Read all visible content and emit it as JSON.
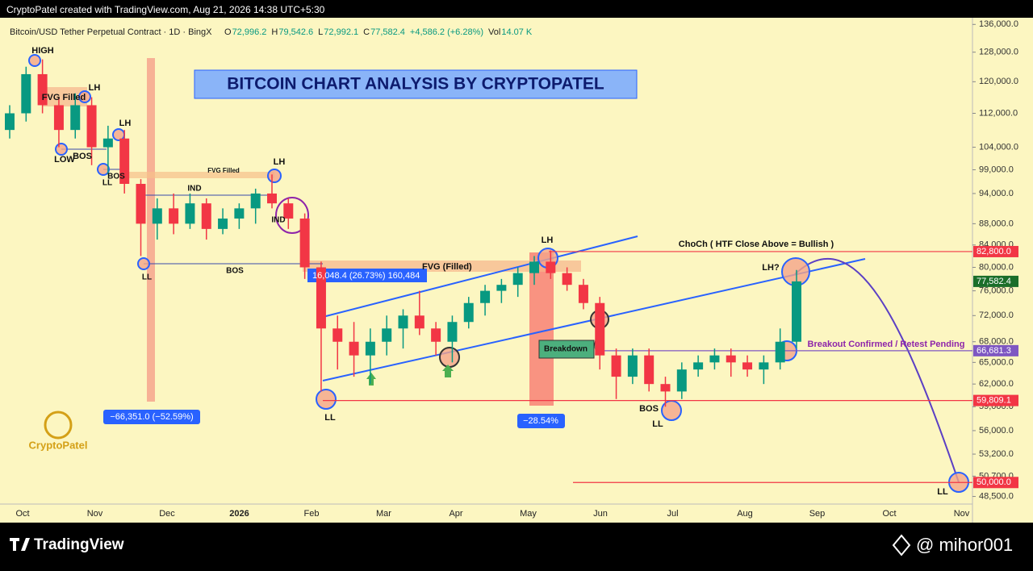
{
  "header": {
    "credit": "CryptoPatel created with TradingView.com, Aug 21, 2026 14:38 UTC+5:30"
  },
  "chart_data": {
    "type": "candlestick",
    "title": "BITCOIN CHART ANALYSIS BY CRYPTOPATEL",
    "symbol": "Bitcoin/USD Tether Perpetual Contract · 1D · BingX",
    "ohlc_header": [
      "O",
      "72,996.2",
      "H",
      "79,542.6",
      "L",
      "72,992.1",
      "C",
      "77,582.4",
      "+4,586.2 (+6.28%)",
      "Vol",
      "14.07 K"
    ],
    "log_scale": true,
    "up_color": "#089981",
    "down_color": "#f23645",
    "ylim": [
      47700,
      138000
    ],
    "yticks": [
      {
        "value": 136000,
        "label": "136,000.0"
      },
      {
        "value": 128000,
        "label": "128,000.0"
      },
      {
        "value": 120000,
        "label": "120,000.0"
      },
      {
        "value": 112000,
        "label": "112,000.0"
      },
      {
        "value": 104000,
        "label": "104,000.0"
      },
      {
        "value": 99000,
        "label": "99,000.0"
      },
      {
        "value": 94000,
        "label": "94,000.0"
      },
      {
        "value": 88000,
        "label": "88,000.0"
      },
      {
        "value": 84000,
        "label": "84,000.0"
      },
      {
        "value": 80000,
        "label": "80,000.0"
      },
      {
        "value": 76000,
        "label": "76,000.0"
      },
      {
        "value": 72000,
        "label": "72,000.0"
      },
      {
        "value": 68000,
        "label": "68,000.0"
      },
      {
        "value": 65000,
        "label": "65,000.0"
      },
      {
        "value": 62000,
        "label": "62,000.0"
      },
      {
        "value": 59000,
        "label": "59,000.0"
      },
      {
        "value": 56000,
        "label": "56,000.0"
      },
      {
        "value": 53200,
        "label": "53,200.0"
      },
      {
        "value": 50700,
        "label": "50,700.0"
      },
      {
        "value": 48500,
        "label": "48,500.0"
      }
    ],
    "xticks": [
      "Oct",
      "Nov",
      "Dec",
      "2026",
      "Feb",
      "Mar",
      "Apr",
      "May",
      "Jun",
      "Jul",
      "Aug",
      "Sep",
      "Oct",
      "Nov"
    ],
    "price_labels": [
      {
        "value": 82800,
        "label": "82,800.0",
        "color": "#f23645"
      },
      {
        "value": 77582.4,
        "label": "77,582.4",
        "color": "#1b6e2a"
      },
      {
        "value": 66681.3,
        "label": "66,681.3",
        "color": "#7e57c2"
      },
      {
        "value": 59809.1,
        "label": "59,809.1",
        "color": "#f23645"
      },
      {
        "value": 50000,
        "label": "50,000.0",
        "color": "#f23645"
      }
    ],
    "candles": [
      [
        108000,
        114000,
        106000,
        112000
      ],
      [
        112000,
        124000,
        110000,
        122000
      ],
      [
        122000,
        126000,
        112000,
        114000
      ],
      [
        114000,
        116000,
        104000,
        108000
      ],
      [
        108000,
        117000,
        106000,
        114000
      ],
      [
        114000,
        116000,
        100000,
        104000
      ],
      [
        104000,
        109000,
        98000,
        106000
      ],
      [
        106000,
        108000,
        94000,
        96000
      ],
      [
        96000,
        97000,
        82000,
        88000
      ],
      [
        88000,
        93000,
        85000,
        91000
      ],
      [
        91000,
        94000,
        86000,
        88000
      ],
      [
        88000,
        94000,
        87000,
        92000
      ],
      [
        92000,
        93000,
        85000,
        87000
      ],
      [
        87000,
        91000,
        86000,
        89000
      ],
      [
        89000,
        92000,
        87000,
        91000
      ],
      [
        91000,
        95000,
        88000,
        94000
      ],
      [
        94000,
        98000,
        91000,
        92000
      ],
      [
        92000,
        93000,
        87000,
        89000
      ],
      [
        89000,
        90000,
        78000,
        80000
      ],
      [
        80000,
        81000,
        61000,
        70000
      ],
      [
        70000,
        72000,
        64000,
        68000
      ],
      [
        68000,
        71000,
        63000,
        66000
      ],
      [
        66000,
        70000,
        62000,
        68000
      ],
      [
        68000,
        72000,
        66000,
        70000
      ],
      [
        70000,
        73000,
        67000,
        72000
      ],
      [
        72000,
        76000,
        69000,
        70000
      ],
      [
        70000,
        71000,
        66000,
        68000
      ],
      [
        68000,
        72000,
        65000,
        71000
      ],
      [
        71000,
        75000,
        70000,
        74000
      ],
      [
        74000,
        77000,
        72000,
        76000
      ],
      [
        76000,
        78000,
        74000,
        77000
      ],
      [
        77000,
        80000,
        75000,
        79000
      ],
      [
        79000,
        82000,
        77000,
        81000
      ],
      [
        81000,
        83000,
        78000,
        79000
      ],
      [
        79000,
        80000,
        76000,
        77000
      ],
      [
        77000,
        78000,
        73000,
        74000
      ],
      [
        74000,
        75000,
        64000,
        66000
      ],
      [
        66000,
        67000,
        60000,
        63000
      ],
      [
        63000,
        67000,
        62000,
        66000
      ],
      [
        66000,
        67000,
        61000,
        62000
      ],
      [
        62000,
        63000,
        59000,
        61000
      ],
      [
        61000,
        65000,
        60000,
        64000
      ],
      [
        64000,
        66000,
        63000,
        65000
      ],
      [
        65000,
        67000,
        64000,
        66000
      ],
      [
        66000,
        67000,
        63000,
        65000
      ],
      [
        65000,
        66000,
        63000,
        64000
      ],
      [
        64000,
        66000,
        62000,
        65000
      ],
      [
        65000,
        70000,
        64000,
        68000
      ],
      [
        68000,
        79542.6,
        67000,
        77582.4
      ]
    ],
    "annotations": [
      "HIGH",
      "FVG Filled",
      "LH",
      "LOW",
      "BOS",
      "LH",
      "BOS",
      "LL",
      "FVG Filled",
      "LH",
      "IND",
      "IND",
      "LL",
      "BOS",
      "16,048.4 (26.73%) 160,484",
      "FVG (Filled)",
      "LH",
      "ChoCh ( HTF Close Above = Bullish )",
      "LH?",
      "Breakdown",
      "Breakout Confirmed / Retest Pending",
      "BOS",
      "LL",
      "−66,351.0 (−52.59%)",
      "−28.54%",
      "LL",
      "LL",
      "CryptoPatel"
    ]
  },
  "footer": {
    "brand": "TradingView",
    "handle": "@ mihor001"
  }
}
